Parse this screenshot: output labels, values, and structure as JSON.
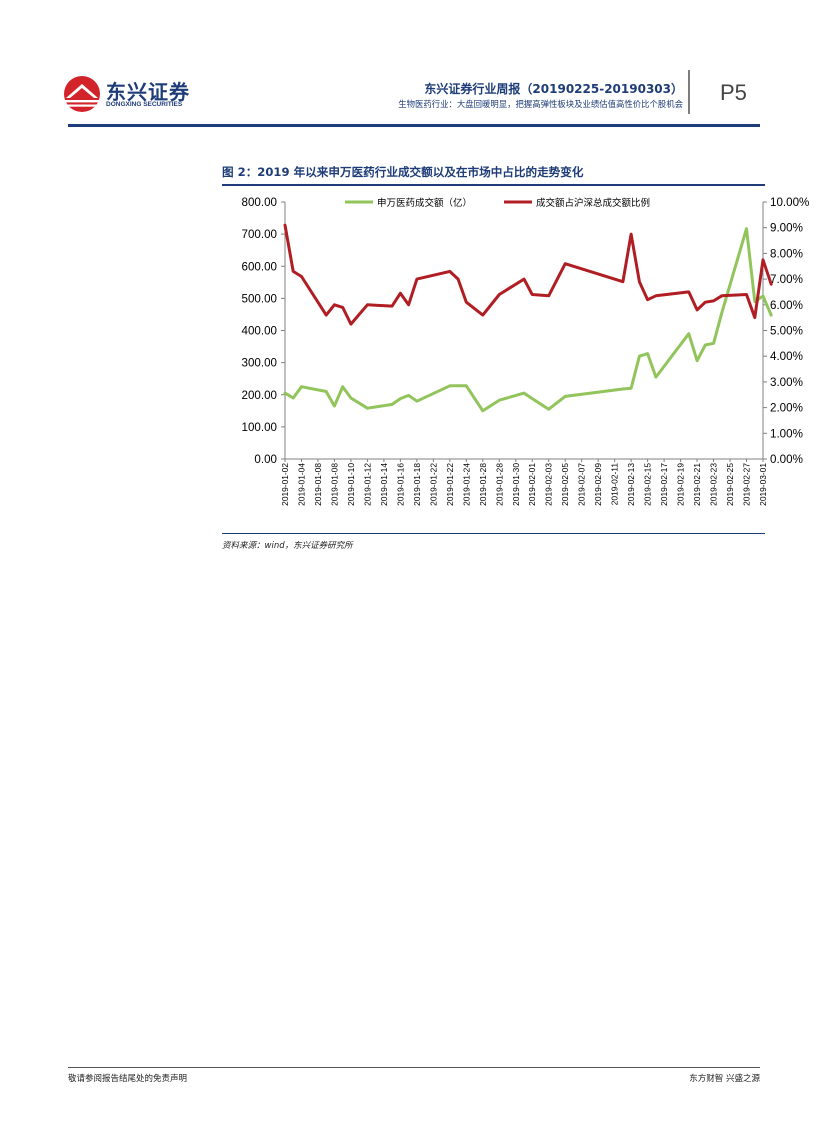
{
  "header": {
    "logo_cn": "东兴证券",
    "logo_en": "DONGXING SECURITIES",
    "report_title": "东兴证券行业周报（20190225-20190303）",
    "report_subtitle": "生物医药行业：大盘回暖明显，把握高弹性板块及业绩估值高性价比个股机会",
    "page_number": "P5"
  },
  "figure": {
    "caption": "图 2：2019 年以来申万医药行业成交额以及在市场中占比的走势变化",
    "source": "资料来源：wind，东兴证券研究所"
  },
  "footer": {
    "left": "敬请参阅报告结尾处的免责声明",
    "right": "东方财智 兴盛之源"
  },
  "colors": {
    "brand_navy": "#1e3c78",
    "logo_red": "#d2232a",
    "series_green": "#92c45c",
    "series_red": "#b01e24"
  },
  "chart_data": {
    "type": "line",
    "title": "",
    "x_tick_labels": [
      "2019-01-02",
      "2019-01-04",
      "2019-01-08",
      "2019-01-08",
      "2019-01-10",
      "2019-01-12",
      "2019-01-14",
      "2019-01-16",
      "2019-01-18",
      "2019-01-22",
      "2019-01-22",
      "2019-01-24",
      "2019-01-28",
      "2019-01-28",
      "2019-01-30",
      "2019-02-01",
      "2019-02-03",
      "2019-02-05",
      "2019-02-07",
      "2019-02-09",
      "2019-02-11",
      "2019-02-13",
      "2019-02-15",
      "2019-02-17",
      "2019-02-19",
      "2019-02-21",
      "2019-02-23",
      "2019-02-25",
      "2019-02-27",
      "2019-03-01"
    ],
    "left_axis": {
      "min": 0,
      "max": 800,
      "ticks": [
        "0.00",
        "100.00",
        "200.00",
        "300.00",
        "400.00",
        "500.00",
        "600.00",
        "700.00",
        "800.00"
      ]
    },
    "right_axis": {
      "min": 0,
      "max": 10,
      "ticks": [
        "0.00%",
        "1.00%",
        "2.00%",
        "3.00%",
        "4.00%",
        "5.00%",
        "6.00%",
        "7.00%",
        "8.00%",
        "9.00%",
        "10.00%"
      ]
    },
    "series": [
      {
        "name": "申万医药成交额（亿）",
        "axis": "left",
        "x": [
          0,
          0.5,
          1,
          2.5,
          3,
          3.5,
          4,
          5,
          6.5,
          7,
          7.5,
          8,
          10,
          10.5,
          11,
          12,
          13,
          14.5,
          15,
          16,
          17,
          20.5,
          21,
          21.5,
          22,
          22.5,
          24.5,
          25,
          25.5,
          26,
          26.5,
          28,
          28.5,
          29,
          29.5
        ],
        "values": [
          205,
          190,
          225,
          210,
          165,
          225,
          190,
          158,
          170,
          188,
          198,
          180,
          228,
          228,
          228,
          150,
          183,
          205,
          188,
          155,
          195,
          218,
          220,
          320,
          328,
          255,
          390,
          306,
          355,
          360,
          455,
          717,
          490,
          507,
          448
        ]
      },
      {
        "name": "成交额占沪深总成交额比例",
        "axis": "right",
        "x": [
          0,
          0.5,
          1,
          2.5,
          3,
          3.5,
          4,
          5,
          6.5,
          7,
          7.5,
          8,
          10,
          10.5,
          11,
          12,
          13,
          14.5,
          15,
          16,
          17,
          20.5,
          21,
          21.5,
          22,
          22.5,
          24.5,
          25,
          25.5,
          26,
          26.5,
          28,
          28.5,
          29,
          29.5
        ],
        "values": [
          9.1,
          7.3,
          7.1,
          5.6,
          6.0,
          5.9,
          5.25,
          6.0,
          5.95,
          6.45,
          6.0,
          7.0,
          7.3,
          7.0,
          6.1,
          5.6,
          6.4,
          7.0,
          6.4,
          6.35,
          7.6,
          6.9,
          8.75,
          6.9,
          6.2,
          6.35,
          6.5,
          5.8,
          6.1,
          6.15,
          6.35,
          6.4,
          5.5,
          7.75,
          6.8
        ]
      }
    ],
    "legend": {
      "position": "top",
      "entries": [
        "申万医药成交额（亿）",
        "成交额占沪深总成交额比例"
      ]
    },
    "grid": false
  }
}
